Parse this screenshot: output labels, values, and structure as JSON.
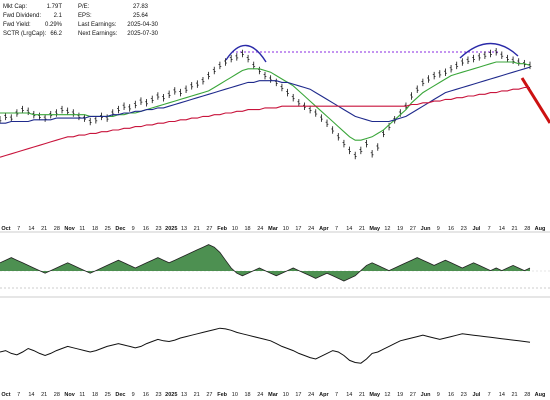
{
  "stats": {
    "left": [
      {
        "label": "Mkt Cap:",
        "value": "1.79T"
      },
      {
        "label": "Fwd Dividend:",
        "value": "2.1"
      },
      {
        "label": "Fwd Yield:",
        "value": "0.29%"
      },
      {
        "label": "SCTR (LrgCap):",
        "value": "66.2"
      }
    ],
    "right": [
      {
        "label": "P/E:",
        "value": "27.83"
      },
      {
        "label": "EPS:",
        "value": "25.64"
      },
      {
        "label": "Last Earnings:",
        "value": "2025-04-30"
      },
      {
        "label": "Next Earnings:",
        "value": "2025-07-30"
      }
    ]
  },
  "x_axis": {
    "ticks": [
      "Oct",
      "7",
      "14",
      "21",
      "28",
      "Nov",
      "11",
      "18",
      "25",
      "Dec",
      "9",
      "16",
      "23",
      "2025",
      "13",
      "21",
      "27",
      "Feb",
      "10",
      "18",
      "24",
      "Mar",
      "10",
      "17",
      "24",
      "Apr",
      "7",
      "14",
      "21",
      "May",
      "12",
      "19",
      "27",
      "Jun",
      "9",
      "16",
      "23",
      "Jul",
      "7",
      "14",
      "21",
      "28",
      "Aug"
    ],
    "bold": [
      "Oct",
      "Nov",
      "Dec",
      "2025",
      "Feb",
      "Mar",
      "Apr",
      "May",
      "Jun",
      "Jul",
      "Aug"
    ]
  },
  "colors": {
    "price": "#111111",
    "ma_short": "#3aa63a",
    "ma_mid": "#1f2a8c",
    "ma_long": "#c8143c",
    "resistance": "#8a2be2",
    "arc": "#2a2aa8",
    "arrow": "#cc1111",
    "hist": "#2e7d32"
  },
  "chart_data": [
    {
      "type": "line",
      "panel": "price",
      "ylim": [
        0,
        100
      ],
      "x_range": [
        0,
        94
      ],
      "series": [
        {
          "role": "price",
          "values": [
            56,
            58,
            57,
            60,
            62,
            61,
            59,
            58,
            57,
            59,
            60,
            62,
            61,
            60,
            58,
            57,
            55,
            56,
            58,
            57,
            60,
            62,
            64,
            63,
            65,
            67,
            66,
            68,
            70,
            69,
            71,
            73,
            72,
            74,
            76,
            77,
            79,
            82,
            85,
            88,
            90,
            92,
            93,
            95,
            92,
            88,
            85,
            82,
            80,
            78,
            75,
            72,
            69,
            66,
            64,
            62,
            60,
            57,
            54,
            50,
            46,
            42,
            38,
            35,
            38,
            42,
            36,
            40,
            48,
            52,
            56,
            60,
            64,
            70,
            74,
            78,
            80,
            82,
            83,
            84,
            86,
            88,
            90,
            91,
            92,
            93,
            94,
            95,
            96,
            94,
            92,
            91,
            90,
            89,
            88
          ]
        },
        {
          "role": "ma_short",
          "values": [
            60,
            60,
            60,
            60,
            60,
            60,
            59,
            59,
            59,
            59,
            59,
            59,
            59,
            59,
            59,
            59,
            58,
            58,
            58,
            58,
            58,
            59,
            59,
            60,
            60,
            61,
            62,
            63,
            64,
            65,
            66,
            67,
            68,
            69,
            70,
            71,
            72,
            73,
            75,
            77,
            79,
            81,
            83,
            85,
            86,
            86,
            86,
            85,
            84,
            82,
            80,
            78,
            76,
            73,
            70,
            67,
            64,
            61,
            58,
            55,
            52,
            49,
            46,
            44,
            44,
            45,
            46,
            48,
            50,
            53,
            56,
            59,
            62,
            66,
            69,
            72,
            74,
            76,
            78,
            80,
            82,
            83,
            84,
            85,
            86,
            87,
            88,
            89,
            90,
            90,
            90,
            90,
            89,
            89,
            88
          ]
        },
        {
          "role": "ma_mid",
          "values": [
            54,
            54,
            55,
            55,
            55,
            55,
            56,
            56,
            56,
            56,
            57,
            57,
            57,
            57,
            57,
            57,
            58,
            58,
            58,
            58,
            59,
            59,
            60,
            60,
            61,
            61,
            62,
            62,
            63,
            63,
            64,
            65,
            66,
            67,
            68,
            69,
            70,
            71,
            72,
            73,
            74,
            75,
            76,
            77,
            78,
            78,
            79,
            79,
            79,
            79,
            78,
            78,
            77,
            76,
            75,
            74,
            72,
            70,
            68,
            66,
            64,
            62,
            60,
            58,
            57,
            56,
            55,
            55,
            55,
            55,
            56,
            57,
            58,
            60,
            62,
            64,
            66,
            68,
            70,
            72,
            73,
            74,
            75,
            76,
            77,
            78,
            79,
            80,
            81,
            82,
            83,
            84,
            85,
            86,
            87
          ]
        },
        {
          "role": "ma_long",
          "values": [
            34,
            35,
            36,
            37,
            38,
            39,
            40,
            41,
            42,
            43,
            44,
            45,
            46,
            46,
            47,
            47,
            48,
            48,
            49,
            49,
            50,
            50,
            51,
            51,
            52,
            52,
            53,
            53,
            54,
            54,
            55,
            55,
            56,
            56,
            57,
            57,
            58,
            58,
            59,
            59,
            60,
            60,
            61,
            61,
            62,
            62,
            62,
            63,
            63,
            63,
            64,
            64,
            64,
            64,
            64,
            64,
            64,
            64,
            64,
            64,
            64,
            64,
            64,
            64,
            64,
            64,
            64,
            64,
            64,
            64,
            64,
            64,
            64,
            65,
            65,
            66,
            66,
            67,
            67,
            68,
            68,
            69,
            69,
            70,
            70,
            71,
            71,
            72,
            72,
            73,
            73,
            74,
            74,
            75,
            75
          ]
        }
      ]
    },
    {
      "type": "area",
      "panel": "oscillator",
      "ylim": [
        -10,
        10
      ],
      "x_range": [
        0,
        94
      ],
      "values": [
        2,
        3,
        4,
        3,
        2,
        1,
        0,
        -1,
        -2,
        -1,
        0,
        1,
        2,
        1,
        0,
        -1,
        -2,
        -1,
        0,
        1,
        2,
        3,
        2,
        1,
        0,
        1,
        2,
        3,
        4,
        3,
        2,
        3,
        4,
        5,
        6,
        7,
        8,
        9,
        8,
        6,
        3,
        0,
        -2,
        -3,
        -2,
        -1,
        0,
        -1,
        -2,
        -3,
        -2,
        -1,
        0,
        -1,
        -2,
        -3,
        -4,
        -3,
        -2,
        -3,
        -4,
        -5,
        -4,
        -3,
        -1,
        1,
        2,
        1,
        0,
        -1,
        0,
        1,
        2,
        3,
        4,
        3,
        2,
        1,
        2,
        3,
        2,
        1,
        0,
        1,
        2,
        1,
        0,
        -1,
        0,
        -1,
        0,
        1,
        0,
        -1,
        0
      ]
    },
    {
      "type": "line",
      "panel": "lower",
      "ylim": [
        0,
        100
      ],
      "x_range": [
        0,
        94
      ],
      "values": [
        40,
        42,
        38,
        36,
        40,
        45,
        42,
        38,
        35,
        38,
        42,
        45,
        48,
        46,
        44,
        42,
        40,
        42,
        45,
        48,
        50,
        52,
        50,
        48,
        46,
        48,
        52,
        55,
        58,
        56,
        55,
        57,
        60,
        62,
        64,
        66,
        68,
        70,
        72,
        74,
        73,
        71,
        68,
        66,
        64,
        62,
        60,
        58,
        56,
        52,
        48,
        45,
        42,
        38,
        35,
        32,
        30,
        34,
        38,
        42,
        40,
        35,
        28,
        25,
        24,
        30,
        38,
        40,
        44,
        48,
        52,
        56,
        58,
        60,
        62,
        64,
        62,
        60,
        58,
        60,
        62,
        64,
        66,
        65,
        64,
        63,
        62,
        61,
        60,
        59,
        58,
        57,
        56,
        55,
        54
      ]
    }
  ]
}
